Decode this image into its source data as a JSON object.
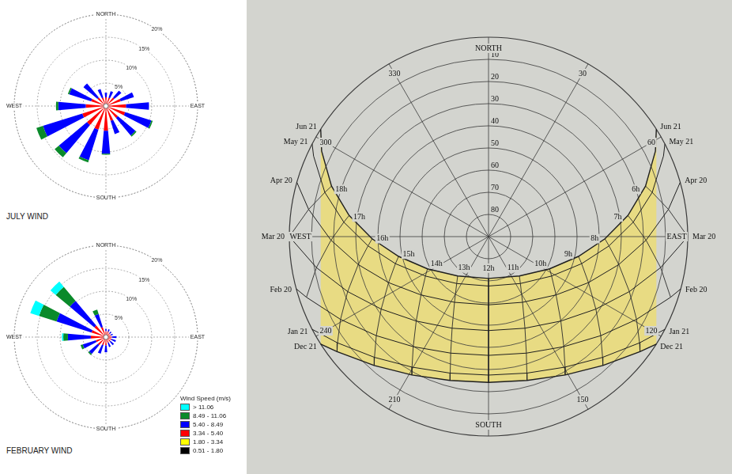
{
  "chart_data": [
    {
      "type": "wind_rose",
      "title": "JULY WIND",
      "legend": "none",
      "direction_labels": [
        {
          "value": 0,
          "label": "NORTH"
        },
        {
          "value": 90,
          "label": "EAST"
        },
        {
          "value": 180,
          "label": "SOUTH"
        },
        {
          "value": 270,
          "label": "WEST"
        }
      ],
      "directions": [
        0,
        22.5,
        45,
        67.5,
        90,
        112.5,
        135,
        157.5,
        180,
        202.5,
        225,
        247.5,
        270,
        292.5,
        315,
        337.5
      ],
      "rlim": [
        0,
        20
      ],
      "rticks": [
        {
          "value": 5,
          "label": "5%"
        },
        {
          "value": 10,
          "label": "10%"
        },
        {
          "value": 15,
          "label": "15%"
        },
        {
          "value": 20,
          "label": "20%"
        }
      ],
      "series": [
        {
          "name": "0.51 - 1.80",
          "color": "#000000",
          "values": [
            0.1,
            0.1,
            0.1,
            0.1,
            0.1,
            0.1,
            0.1,
            0.1,
            0.1,
            0.1,
            0.1,
            0.1,
            0.1,
            0.1,
            0.1,
            0.1
          ]
        },
        {
          "name": "1.80 - 3.34",
          "color": "#ffff00",
          "values": [
            0.3,
            0.3,
            0.3,
            0.3,
            0.3,
            0.3,
            0.3,
            0.3,
            0.3,
            0.3,
            0.3,
            0.3,
            0.3,
            0.3,
            0.3,
            0.3
          ]
        },
        {
          "name": "3.34 - 5.40",
          "color": "#ff0000",
          "values": [
            1.5,
            1.5,
            2,
            3,
            4,
            4,
            3,
            3,
            5,
            5,
            5,
            5,
            4,
            3,
            2,
            1.5
          ]
        },
        {
          "name": "5.40 - 8.49",
          "color": "#0000ff",
          "values": [
            1,
            1.5,
            2,
            3,
            5,
            6,
            5,
            3,
            5,
            7,
            8,
            9,
            6,
            5,
            4,
            2
          ]
        },
        {
          "name": "8.49 - 11.06",
          "color": "#0a8a2a",
          "values": [
            0,
            0,
            0,
            0,
            0,
            0.3,
            0.3,
            0,
            0.2,
            0.5,
            1.2,
            1.5,
            0.5,
            0.3,
            0,
            0
          ]
        },
        {
          "name": "> 11.06",
          "color": "#00ffff",
          "values": [
            0,
            0,
            0,
            0,
            0,
            0,
            0,
            0,
            0,
            0,
            0,
            0,
            0,
            0,
            0,
            0
          ]
        }
      ]
    },
    {
      "type": "wind_rose",
      "title": "FEBRUARY WIND",
      "legend": "lower right",
      "legend_title": "Wind Speed (m/s)",
      "direction_labels": [
        {
          "value": 0,
          "label": "NORTH"
        },
        {
          "value": 90,
          "label": "EAST"
        },
        {
          "value": 180,
          "label": "SOUTH"
        },
        {
          "value": 270,
          "label": "WEST"
        }
      ],
      "directions": [
        0,
        22.5,
        45,
        67.5,
        90,
        112.5,
        135,
        157.5,
        180,
        202.5,
        225,
        247.5,
        270,
        292.5,
        315,
        337.5
      ],
      "rlim": [
        0,
        20
      ],
      "rticks": [
        {
          "value": 5,
          "label": "5%"
        },
        {
          "value": 10,
          "label": "10%"
        },
        {
          "value": 15,
          "label": "15%"
        },
        {
          "value": 20,
          "label": "20%"
        }
      ],
      "series": [
        {
          "name": "0.51 - 1.80",
          "color": "#000000",
          "values": [
            0.1,
            0.1,
            0.1,
            0.1,
            0.1,
            0.1,
            0.1,
            0.1,
            0.1,
            0.1,
            0.1,
            0.1,
            0.1,
            0.1,
            0.1,
            0.1
          ]
        },
        {
          "name": "1.80 - 3.34",
          "color": "#ffff00",
          "values": [
            0.2,
            0.2,
            0.2,
            0.2,
            0.2,
            0.2,
            0.2,
            0.2,
            0.2,
            0.2,
            0.2,
            0.2,
            0.2,
            0.2,
            0.2,
            0.2
          ]
        },
        {
          "name": "3.34 - 5.40",
          "color": "#ff0000",
          "values": [
            1,
            1,
            0.8,
            0.8,
            1,
            1,
            1,
            1,
            1.5,
            1.5,
            2,
            2,
            3,
            3,
            3,
            2
          ]
        },
        {
          "name": "5.40 - 8.49",
          "color": "#0000ff",
          "values": [
            0.5,
            0.5,
            0.5,
            0.5,
            1,
            1,
            1,
            1,
            1.5,
            2,
            2.5,
            3,
            5,
            8,
            7,
            3
          ]
        },
        {
          "name": "8.49 - 11.06",
          "color": "#0a8a2a",
          "values": [
            0,
            0,
            0,
            0,
            0,
            0,
            0,
            0,
            0,
            0,
            0.3,
            0.5,
            1,
            4,
            4,
            1
          ]
        },
        {
          "name": "> 11.06",
          "color": "#00ffff",
          "values": [
            0,
            0,
            0,
            0,
            0,
            0,
            0,
            0,
            0,
            0,
            0,
            0,
            0.3,
            2,
            1.5,
            0
          ]
        }
      ]
    },
    {
      "type": "sun_path",
      "color": "#f2df5a",
      "altitude_lim": [
        0,
        90
      ],
      "altitude_ticks": [
        10,
        20,
        30,
        40,
        50,
        60,
        70,
        80
      ],
      "azimuth_ticks": [
        {
          "value": 0,
          "label": "NORTH"
        },
        30,
        60,
        {
          "value": 90,
          "label": "EAST"
        },
        120,
        150,
        {
          "value": 180,
          "label": "SOUTH"
        },
        210,
        240,
        {
          "value": 270,
          "label": "WEST"
        },
        300,
        330
      ],
      "hour_labels": [
        {
          "value": 6,
          "label": "6h"
        },
        {
          "value": 7,
          "label": "7h"
        },
        {
          "value": 8,
          "label": "8h"
        },
        {
          "value": 9,
          "label": "9h"
        },
        {
          "value": 10,
          "label": "10h"
        },
        {
          "value": 11,
          "label": "11h"
        },
        {
          "value": 12,
          "label": "12h"
        },
        {
          "value": 13,
          "label": "13h"
        },
        {
          "value": 14,
          "label": "14h"
        },
        {
          "value": 15,
          "label": "15h"
        },
        {
          "value": 16,
          "label": "16h"
        },
        {
          "value": 17,
          "label": "17h"
        },
        {
          "value": 18,
          "label": "18h"
        }
      ],
      "series": [
        {
          "name": "Jun 21",
          "sunrise_azimuth": 57.4,
          "sunset_azimuth": 302.6,
          "hours": [
            5,
            6,
            7,
            8,
            9,
            10,
            11,
            12,
            13,
            14,
            15,
            16,
            17,
            18,
            19
          ],
          "azimuth": [
            62.9,
            72.2,
            81.4,
            91.1,
            102.4,
            117.8,
            141.9,
            180,
            218.1,
            242.2,
            257.6,
            268.9,
            278.6,
            287.8,
            297.1
          ],
          "altitude": [
            5.3,
            15.5,
            26.3,
            37.4,
            48.4,
            58.8,
            67.4,
            71.1,
            67.4,
            58.8,
            48.4,
            37.4,
            26.3,
            15.5,
            5.3
          ]
        },
        {
          "name": "May 21",
          "sunrise_azimuth": 62.3,
          "sunset_azimuth": 297.7,
          "hours": [
            5,
            6,
            7,
            8,
            9,
            10,
            11,
            12,
            13,
            14,
            15,
            16,
            17,
            18,
            19
          ],
          "azimuth": [
            65.3,
            74.9,
            84.3,
            94.4,
            106.2,
            122.0,
            145.8,
            180,
            214.2,
            238.0,
            253.8,
            265.6,
            275.7,
            285.1,
            294.7
          ],
          "altitude": [
            3.0,
            13.4,
            24.3,
            35.4,
            46.2,
            56.4,
            64.4,
            67.7,
            64.4,
            56.4,
            46.2,
            35.4,
            24.3,
            13.4,
            3.0
          ]
        },
        {
          "name": "Apr 20",
          "sunrise_azimuth": 74.2,
          "sunset_azimuth": 285.8,
          "hours": [
            6,
            7,
            8,
            9,
            10,
            11,
            12,
            13,
            14,
            15,
            16,
            17,
            18
          ],
          "azimuth": [
            81.4,
            91.3,
            102.1,
            114.7,
            130.8,
            152.6,
            180,
            207.4,
            229.2,
            245.3,
            257.9,
            268.7,
            278.6
          ],
          "altitude": [
            7.8,
            18.8,
            29.8,
            40.3,
            49.7,
            56.6,
            59.2,
            56.6,
            49.7,
            40.3,
            29.8,
            18.8,
            7.8
          ]
        },
        {
          "name": "Mar 20",
          "sunrise_azimuth": 90,
          "sunset_azimuth": 270,
          "hours": [
            6,
            7,
            8,
            9,
            10,
            11,
            12,
            13,
            14,
            15,
            16,
            17,
            18
          ],
          "azimuth": [
            90,
            100.2,
            111.3,
            124.0,
            139.4,
            158.3,
            180,
            201.7,
            220.6,
            236.0,
            248.7,
            259.8,
            270
          ],
          "altitude": [
            0,
            11.0,
            21.7,
            31.5,
            39.8,
            45.5,
            47.6,
            45.5,
            39.8,
            31.5,
            21.7,
            11.0,
            0
          ]
        },
        {
          "name": "Feb 20",
          "sunrise_azimuth": 105.2,
          "sunset_azimuth": 254.8,
          "hours": [
            7,
            8,
            9,
            10,
            11,
            12,
            13,
            14,
            15,
            16,
            17
          ],
          "azimuth": [
            108.4,
            119.2,
            131.4,
            145.6,
            162.0,
            180,
            198.0,
            214.4,
            228.6,
            240.8,
            251.6
          ],
          "altitude": [
            3.3,
            13.4,
            22.4,
            29.8,
            34.7,
            36.4,
            34.7,
            29.8,
            22.4,
            13.4,
            3.3
          ]
        },
        {
          "name": "Jan 21",
          "sunrise_azimuth": 117.7,
          "sunset_azimuth": 242.3,
          "hours": [
            8,
            9,
            10,
            11,
            12,
            13,
            14,
            15,
            16
          ],
          "azimuth": [
            125.1,
            136.6,
            149.6,
            164.3,
            180,
            195.7,
            210.4,
            223.4,
            234.9
          ],
          "altitude": [
            6.6,
            15.0,
            21.7,
            26.0,
            27.5,
            26.0,
            21.7,
            15.0,
            6.6
          ]
        },
        {
          "name": "Dec 21",
          "sunrise_azimuth": 122.6,
          "sunset_azimuth": 237.4,
          "hours": [
            8,
            9,
            10,
            11,
            12,
            13,
            14,
            15,
            16
          ],
          "azimuth": [
            127.2,
            138.4,
            151.0,
            165.0,
            180,
            195.0,
            209.0,
            221.6,
            232.8
          ],
          "altitude": [
            4.1,
            12.2,
            18.6,
            22.8,
            24.2,
            22.8,
            18.6,
            12.2,
            4.1
          ]
        }
      ]
    }
  ]
}
